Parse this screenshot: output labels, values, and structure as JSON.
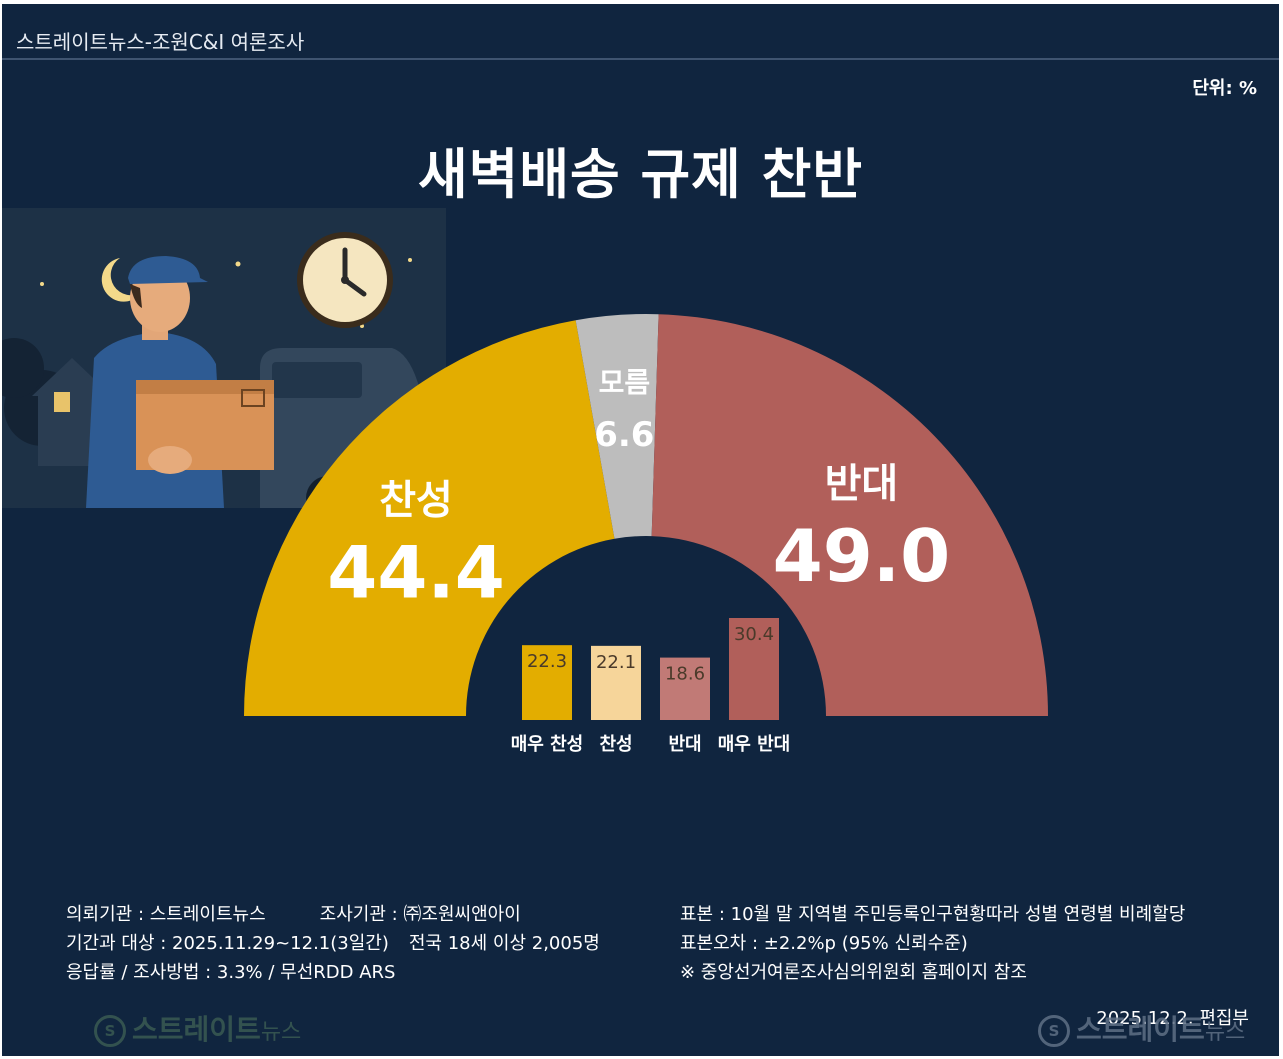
{
  "header": {
    "text": "스트레이트뉴스-조원C&I 여론조사"
  },
  "unit": "단위: %",
  "title": "새벽배송 규제 찬반",
  "chart_data": {
    "type": "pie",
    "subtype": "semicircle-donut",
    "title": "새벽배송 규제 찬반",
    "slices": [
      {
        "label": "찬성",
        "value": 44.4,
        "color": "#e3ad00"
      },
      {
        "label": "모름",
        "value": 6.6,
        "color": "#bdbdbd"
      },
      {
        "label": "반대",
        "value": 49.0,
        "color": "#b15f5a"
      }
    ],
    "breakdown": {
      "type": "bar",
      "categories": [
        "매우 찬성",
        "찬성",
        "반대",
        "매우 반대"
      ],
      "values": [
        22.3,
        22.1,
        18.6,
        30.4
      ],
      "colors": [
        "#e3ad00",
        "#f6d59a",
        "#c17a76",
        "#b15f5a"
      ],
      "value_labels": [
        "22.3",
        "22.1",
        "18.6",
        "30.4"
      ],
      "ylim": [
        0,
        30.4
      ]
    }
  },
  "footer": {
    "client": "의뢰기관 : 스트레이트뉴스",
    "agency": "조사기관 : ㈜조원씨앤아이",
    "period": "기간과 대상 : 2025.11.29~12.1(3일간)",
    "target": "전국 18세 이상  2,005명",
    "response": "응답률 / 조사방법 : 3.3% / 무선RDD ARS",
    "sample": "표본 : 10월 말 지역별 주민등록인구현황따라 성별 연령별 비례할당",
    "error": "표본오차 : ±2.2%p (95% 신뢰수준)",
    "note": "※ 중앙선거여론조사심의위원회 홈페이지 참조",
    "date": "2025.12.2. 편집부"
  },
  "logos": {
    "main": "스트레이트",
    "sub": "뉴스",
    "mark": "S"
  }
}
